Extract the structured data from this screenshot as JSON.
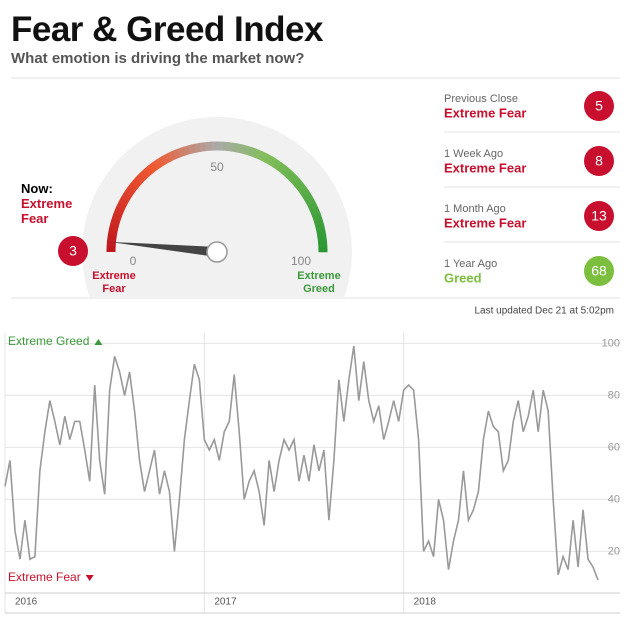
{
  "header": {
    "title": "Fear & Greed Index",
    "subtitle": "What emotion is driving the market now?"
  },
  "gauge": {
    "type": "gauge",
    "now_label": "Now:",
    "value": 3,
    "rating": "Extreme Fear",
    "color": "#c8102e",
    "min": 0,
    "max": 100,
    "ticks": [
      0,
      50,
      100
    ],
    "min_label": "Extreme Fear",
    "max_label": "Extreme Greed"
  },
  "history": [
    {
      "label": "Previous Close",
      "rating": "Extreme Fear",
      "value": 5,
      "color": "#c8102e"
    },
    {
      "label": "1 Week Ago",
      "rating": "Extreme Fear",
      "value": 8,
      "color": "#c8102e"
    },
    {
      "label": "1 Month Ago",
      "rating": "Extreme Fear",
      "value": 13,
      "color": "#c8102e"
    },
    {
      "label": "1 Year Ago",
      "rating": "Greed",
      "value": 68,
      "color": "#7cbf3f"
    }
  ],
  "last_updated": "Last updated Dec 21 at 5:02pm",
  "chart_data": {
    "type": "line",
    "color": "#999999",
    "grid": true,
    "annotations": [
      {
        "text": "Extreme Greed",
        "color": "#3a9a3a"
      },
      {
        "text": "Extreme Fear",
        "color": "#c8102e"
      }
    ],
    "x": [
      2016,
      2016.025,
      2016.05,
      2016.075,
      2016.1,
      2016.125,
      2016.15,
      2016.175,
      2016.2,
      2016.225,
      2016.25,
      2016.275,
      2016.3,
      2016.325,
      2016.35,
      2016.375,
      2016.4,
      2016.425,
      2016.45,
      2016.475,
      2016.5,
      2016.525,
      2016.55,
      2016.575,
      2016.6,
      2016.625,
      2016.65,
      2016.675,
      2016.7,
      2016.725,
      2016.75,
      2016.775,
      2016.8,
      2016.825,
      2016.85,
      2016.875,
      2016.9,
      2016.925,
      2016.95,
      2016.975,
      2017,
      2017.025,
      2017.05,
      2017.075,
      2017.1,
      2017.125,
      2017.15,
      2017.175,
      2017.2,
      2017.225,
      2017.25,
      2017.275,
      2017.3,
      2017.325,
      2017.35,
      2017.375,
      2017.4,
      2017.425,
      2017.45,
      2017.475,
      2017.5,
      2017.525,
      2017.55,
      2017.575,
      2017.6,
      2017.625,
      2017.65,
      2017.675,
      2017.7,
      2017.725,
      2017.75,
      2017.775,
      2017.8,
      2017.825,
      2017.85,
      2017.875,
      2017.9,
      2017.925,
      2017.95,
      2017.975,
      2018,
      2018.025,
      2018.05,
      2018.075,
      2018.1,
      2018.125,
      2018.15,
      2018.175,
      2018.2,
      2018.225,
      2018.25,
      2018.275,
      2018.3,
      2018.325,
      2018.35,
      2018.375,
      2018.4,
      2018.425,
      2018.45,
      2018.475,
      2018.5,
      2018.525,
      2018.55,
      2018.575,
      2018.6,
      2018.625,
      2018.65,
      2018.675,
      2018.7,
      2018.725,
      2018.75,
      2018.775,
      2018.8,
      2018.825,
      2018.85,
      2018.875,
      2018.9,
      2018.925,
      2018.95,
      2018.975
    ],
    "values": [
      45,
      55,
      28,
      17,
      32,
      17,
      18,
      51,
      66,
      78,
      70,
      61,
      72,
      63,
      70,
      70,
      59,
      47,
      84,
      55,
      42,
      82,
      95,
      89,
      80,
      89,
      74,
      55,
      43,
      51,
      59,
      42,
      51,
      43,
      20,
      40,
      63,
      78,
      92,
      86,
      63,
      59,
      63,
      55,
      66,
      70,
      88,
      66,
      40,
      47,
      51,
      43,
      30,
      55,
      43,
      55,
      63,
      59,
      63,
      47,
      57,
      47,
      61,
      51,
      59,
      32,
      55,
      86,
      70,
      86,
      99,
      78,
      93,
      78,
      70,
      76,
      63,
      70,
      78,
      70,
      82,
      84,
      82,
      63,
      20,
      24,
      18,
      40,
      32,
      13,
      24,
      32,
      51,
      32,
      36,
      43,
      63,
      74,
      68,
      66,
      51,
      55,
      70,
      78,
      66,
      72,
      82,
      66,
      82,
      74,
      40,
      11,
      18,
      13,
      32,
      14,
      36,
      17,
      14,
      9
    ],
    "xlim": [
      2016,
      2018.975
    ],
    "xticks": [
      2016,
      2017,
      2018
    ],
    "ylim": [
      4,
      104
    ],
    "yticks": [
      20,
      40,
      60,
      80,
      100
    ]
  }
}
